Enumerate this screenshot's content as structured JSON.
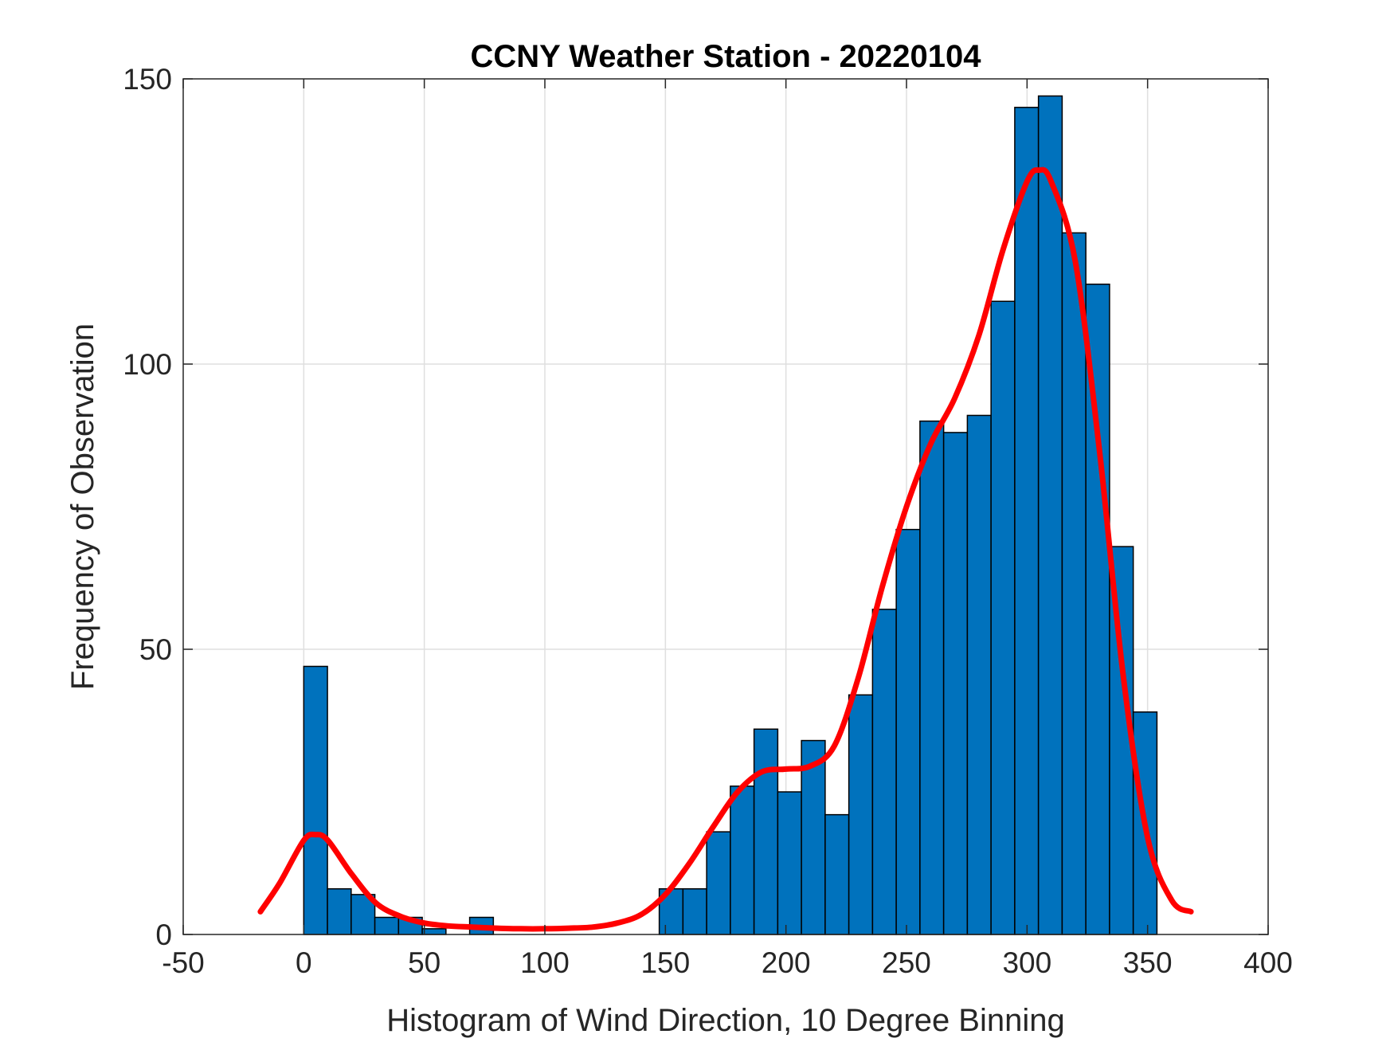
{
  "chart_data": {
    "type": "bar",
    "title": "CCNY Weather Station - 20220104",
    "xlabel": "Histogram of Wind Direction, 10 Degree Binning",
    "ylabel": "Frequency of Observation",
    "xlim": [
      -50,
      400
    ],
    "ylim": [
      0,
      150
    ],
    "xticks": [
      -50,
      0,
      50,
      100,
      150,
      200,
      250,
      300,
      350,
      400
    ],
    "yticks": [
      0,
      50,
      100,
      150
    ],
    "grid": true,
    "bin_width": 9.83,
    "bin_edges": [
      0,
      9.83,
      19.66,
      29.49,
      39.32,
      49.15,
      58.98,
      68.81,
      78.64,
      88.47,
      98.3,
      108.13,
      117.96,
      127.79,
      137.62,
      147.45,
      157.28,
      167.11,
      176.94,
      186.77,
      196.6,
      206.43,
      216.26,
      226.09,
      235.92,
      245.75,
      255.58,
      265.41,
      275.24,
      285.07,
      294.9,
      304.73,
      314.56,
      324.39,
      334.22,
      344.05,
      353.88
    ],
    "values": [
      47,
      8,
      7,
      3,
      3,
      1,
      0,
      3,
      0,
      0,
      0,
      0,
      0,
      0,
      0,
      8,
      8,
      18,
      26,
      36,
      25,
      34,
      21,
      42,
      57,
      71,
      90,
      88,
      91,
      111,
      145,
      147,
      123,
      114,
      68,
      39
    ],
    "density_curve": {
      "x": [
        -18,
        -10,
        0,
        5,
        10,
        20,
        30,
        40,
        50,
        60,
        70,
        80,
        90,
        100,
        110,
        120,
        130,
        140,
        150,
        160,
        170,
        180,
        190,
        200,
        210,
        220,
        230,
        240,
        250,
        260,
        270,
        280,
        290,
        300,
        305,
        310,
        320,
        330,
        340,
        350,
        360,
        368
      ],
      "y": [
        4,
        9,
        16.5,
        17.5,
        16.5,
        10.5,
        5.5,
        3.2,
        2,
        1.5,
        1.3,
        1.1,
        1,
        1,
        1.1,
        1.3,
        2,
        3.5,
        7,
        12.5,
        19,
        25,
        28.5,
        29,
        29.5,
        33,
        45,
        61,
        75,
        86,
        94,
        105,
        120,
        132,
        134,
        132,
        118,
        85,
        45,
        17,
        6,
        4
      ]
    },
    "colors": {
      "bar_fill": "#0072bd",
      "bar_edge": "#000000",
      "curve": "#ff0000",
      "grid": "#dfdfdf",
      "axis": "#262626"
    }
  }
}
